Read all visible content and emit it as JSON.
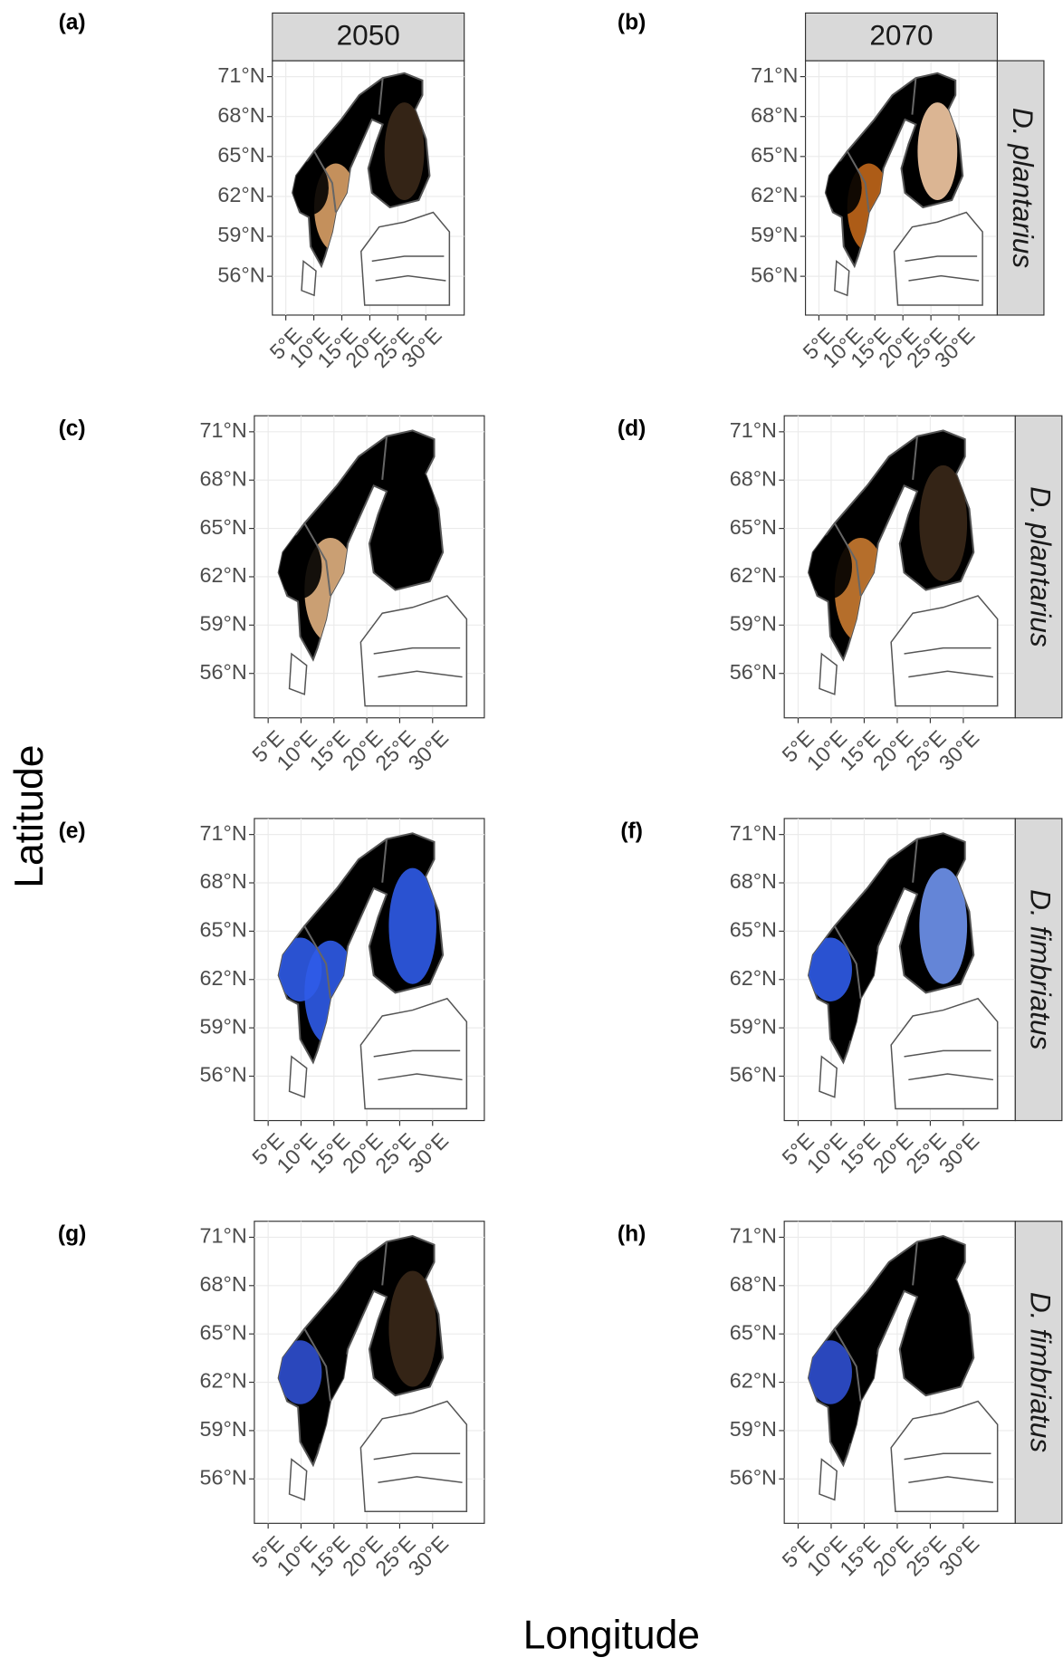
{
  "x_axis_title": "Longitude",
  "y_axis_title": "Latitude",
  "columns": [
    "2050",
    "2070"
  ],
  "rows": [
    "D. plantarius",
    "D. plantarius",
    "D. fimbriatus",
    "D. fimbriatus"
  ],
  "y_ticks": [
    "71°N",
    "68°N",
    "65°N",
    "62°N",
    "59°N",
    "56°N"
  ],
  "x_ticks": [
    "5°E",
    "10°E",
    "15°E",
    "20°E",
    "25°E",
    "30°E"
  ],
  "panels": [
    {
      "tag": "(a)",
      "colors": [
        "#d9a066",
        "#3a2818",
        "#000000"
      ]
    },
    {
      "tag": "(b)",
      "colors": [
        "#c0661a",
        "#f3c9a3",
        "#000000"
      ]
    },
    {
      "tag": "(c)",
      "colors": [
        "#e0b080",
        "#000000",
        "#000000"
      ]
    },
    {
      "tag": "(d)",
      "colors": [
        "#c97a30",
        "#3a2818",
        "#000000"
      ]
    },
    {
      "tag": "(e)",
      "colors": [
        "#2f5be8",
        "#2f5be8",
        "#2f5be8"
      ]
    },
    {
      "tag": "(f)",
      "colors": [
        "#000000",
        "#6f93ee",
        "#2f5be8"
      ]
    },
    {
      "tag": "(g)",
      "colors": [
        "#000000",
        "#3a2818",
        "#2f4fd0"
      ]
    },
    {
      "tag": "(h)",
      "colors": [
        "#000000",
        "#000000",
        "#2f4fd0"
      ]
    }
  ]
}
